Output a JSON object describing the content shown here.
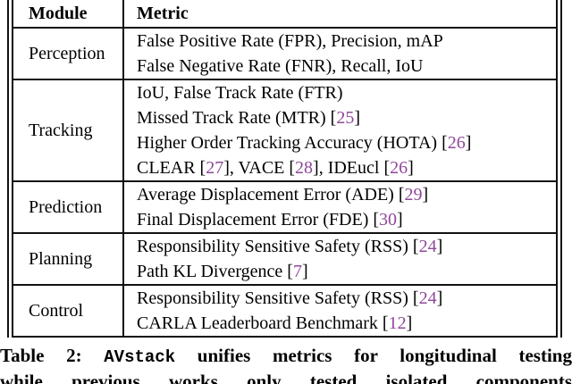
{
  "cite_color": "#8f4899",
  "table": {
    "header": {
      "module": "Module",
      "metric": "Metric"
    },
    "rows": [
      {
        "module": "Perception",
        "lines": [
          [
            {
              "text": "False Positive Rate (FPR), Precision, mAP",
              "style": "plain"
            }
          ],
          [
            {
              "text": "False Negative Rate (FNR), Recall, IoU",
              "style": "plain"
            }
          ]
        ]
      },
      {
        "module": "Tracking",
        "lines": [
          [
            {
              "text": "IoU, False Track Rate (FTR)",
              "style": "plain"
            }
          ],
          [
            {
              "text": "Missed Track Rate (MTR) [",
              "style": "plain"
            },
            {
              "text": "25",
              "style": "cite"
            },
            {
              "text": "]",
              "style": "plain"
            }
          ],
          [
            {
              "text": "Higher Order Tracking Accuracy (HOTA) [",
              "style": "plain"
            },
            {
              "text": "26",
              "style": "cite"
            },
            {
              "text": "]",
              "style": "plain"
            }
          ],
          [
            {
              "text": "CLEAR [",
              "style": "plain"
            },
            {
              "text": "27",
              "style": "cite"
            },
            {
              "text": "], VACE [",
              "style": "plain"
            },
            {
              "text": "28",
              "style": "cite"
            },
            {
              "text": "], IDEucl [",
              "style": "plain"
            },
            {
              "text": "26",
              "style": "cite"
            },
            {
              "text": "]",
              "style": "plain"
            }
          ]
        ]
      },
      {
        "module": "Prediction",
        "lines": [
          [
            {
              "text": "Average Displacement Error (ADE) [",
              "style": "plain"
            },
            {
              "text": "29",
              "style": "cite"
            },
            {
              "text": "]",
              "style": "plain"
            }
          ],
          [
            {
              "text": "Final Displacement Error (FDE) [",
              "style": "plain"
            },
            {
              "text": "30",
              "style": "cite"
            },
            {
              "text": "]",
              "style": "plain"
            }
          ]
        ]
      },
      {
        "module": "Planning",
        "lines": [
          [
            {
              "text": "Responsibility Sensitive Safety (RSS) [",
              "style": "plain"
            },
            {
              "text": "24",
              "style": "cite"
            },
            {
              "text": "]",
              "style": "plain"
            }
          ],
          [
            {
              "text": "Path KL Divergence [",
              "style": "plain"
            },
            {
              "text": "7",
              "style": "cite"
            },
            {
              "text": "]",
              "style": "plain"
            }
          ]
        ]
      },
      {
        "module": "Control",
        "lines": [
          [
            {
              "text": "Responsibility Sensitive Safety (RSS) [",
              "style": "plain"
            },
            {
              "text": "24",
              "style": "cite"
            },
            {
              "text": "]",
              "style": "plain"
            }
          ],
          [
            {
              "text": "CARLA Leaderboard Benchmark [",
              "style": "plain"
            },
            {
              "text": "12",
              "style": "cite"
            },
            {
              "text": "]",
              "style": "plain"
            }
          ]
        ]
      }
    ]
  },
  "caption": {
    "lines": [
      [
        {
          "text": "Table 2: ",
          "style": "plain"
        },
        {
          "text": "AVstack",
          "style": "mono"
        },
        {
          "text": " unifies metrics for longitudinal testing",
          "style": "plain"
        }
      ],
      [
        {
          "text": "while previous works only tested isolated components",
          "style": "plain"
        }
      ]
    ]
  }
}
